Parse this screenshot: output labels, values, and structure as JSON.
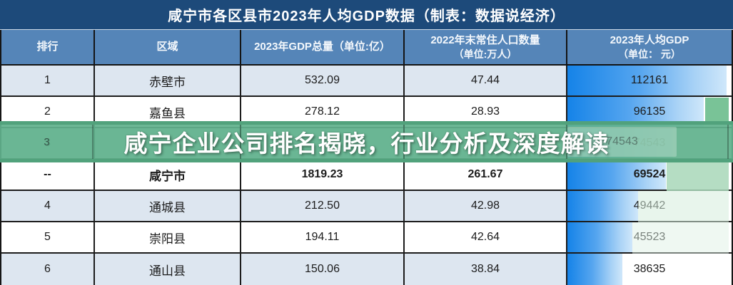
{
  "page_title": "咸宁市各区县市2023年人均GDP数据（制表：数据说经济）",
  "watermark": {
    "headline": "咸宁企业公司排名揭晓，行业分析及深度解读"
  },
  "table": {
    "columns": [
      {
        "label": "排行"
      },
      {
        "label": "区域"
      },
      {
        "label": "2023年GDP总量（单位:亿）"
      },
      {
        "label": "2022年末常住人口数量",
        "label2": "（单位:万人）"
      },
      {
        "label": "2023年人均GDP",
        "label2": "（单位： 元）"
      }
    ],
    "rows": [
      {
        "rank": "1",
        "region": "赤壁市",
        "gdp": "532.09",
        "population": "47.44",
        "per_capita": "112161",
        "bar_pct": 97,
        "bold": false,
        "hidden_by_watermark": false
      },
      {
        "rank": "2",
        "region": "嘉鱼县",
        "gdp": "278.12",
        "population": "28.93",
        "per_capita": "96135",
        "bar_pct": 83,
        "bold": false,
        "hidden_by_watermark": false
      },
      {
        "rank": "3",
        "region": "",
        "gdp": "",
        "population": "",
        "per_capita": "74543",
        "bar_pct": 64.5,
        "bold": false,
        "hidden_by_watermark": true
      },
      {
        "rank": "--",
        "region": "咸宁市",
        "gdp": "1819.23",
        "population": "261.67",
        "per_capita": "69524",
        "bar_pct": 60,
        "bold": true,
        "hidden_by_watermark": false
      },
      {
        "rank": "4",
        "region": "通城县",
        "gdp": "212.50",
        "population": "42.98",
        "per_capita": "49442",
        "bar_pct": 43,
        "bold": false,
        "hidden_by_watermark": false
      },
      {
        "rank": "5",
        "region": "崇阳县",
        "gdp": "194.11",
        "population": "42.64",
        "per_capita": "45523",
        "bar_pct": 39.5,
        "bold": false,
        "hidden_by_watermark": false
      },
      {
        "rank": "6",
        "region": "通山县",
        "gdp": "150.06",
        "population": "38.84",
        "per_capita": "38635",
        "bar_pct": 33.5,
        "bold": false,
        "hidden_by_watermark": false
      }
    ]
  },
  "colors": {
    "title_bar_bg": "#1d4a7a",
    "header_bg": "#5585b8",
    "row_alt_bg": "#dde6f0",
    "bar_gradient_start": "#1583e8",
    "bar_gradient_end": "#cfe7fa",
    "watermark_green": "#61b28d"
  },
  "chart_data": {
    "type": "table",
    "title": "咸宁市各区县市2023年人均GDP数据（制表：数据说经济）",
    "columns": [
      "排行",
      "区域",
      "2023年GDP总量（单位:亿）",
      "2022年末常住人口数量（单位:万人）",
      "2023年人均GDP（单位：元）"
    ],
    "rows": [
      [
        "1",
        "赤壁市",
        "532.09",
        "47.44",
        "112161"
      ],
      [
        "2",
        "嘉鱼县",
        "278.12",
        "28.93",
        "96135"
      ],
      [
        "3",
        "",
        "",
        "",
        "74543"
      ],
      [
        "--",
        "咸宁市",
        "1819.23",
        "261.67",
        "69524"
      ],
      [
        "4",
        "通城县",
        "212.50",
        "42.98",
        "49442"
      ],
      [
        "5",
        "崇阳县",
        "194.11",
        "42.64",
        "45523"
      ],
      [
        "6",
        "通山县",
        "150.06",
        "38.84",
        "38635"
      ]
    ],
    "bar_column": "2023年人均GDP（单位：元）",
    "bar_values": [
      112161,
      96135,
      74543,
      69524,
      49442,
      45523,
      38635
    ],
    "bar_max": 112161,
    "notes": "row 3 region/GDP/population cells obscured by green watermark banner"
  }
}
